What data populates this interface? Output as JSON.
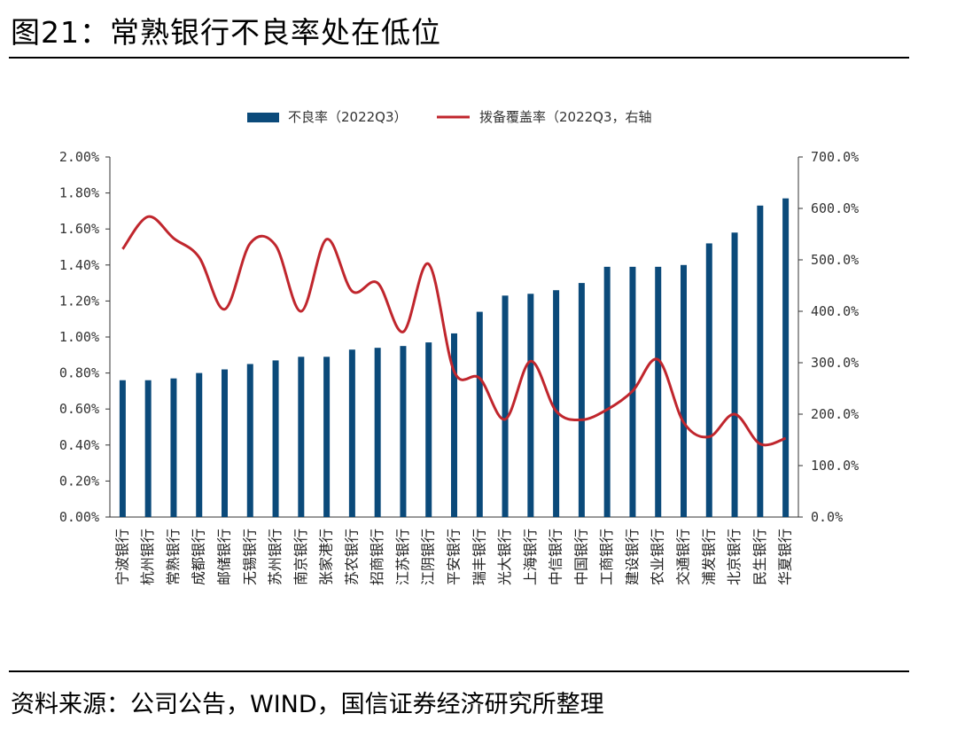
{
  "figure": {
    "title": "图21：常熟银行不良率处在低位",
    "source": "资料来源：公司公告，WIND，国信证券经济研究所整理"
  },
  "chart_data": {
    "type": "bar",
    "categories": [
      "宁波银行",
      "杭州银行",
      "常熟银行",
      "成都银行",
      "邮储银行",
      "无锡银行",
      "苏州银行",
      "南京银行",
      "张家港行",
      "苏农银行",
      "招商银行",
      "江苏银行",
      "江阴银行",
      "平安银行",
      "瑞丰银行",
      "光大银行",
      "上海银行",
      "中信银行",
      "中国银行",
      "工商银行",
      "建设银行",
      "农业银行",
      "交通银行",
      "浦发银行",
      "北京银行",
      "民生银行",
      "华夏银行"
    ],
    "series": [
      {
        "name": "不良率（2022Q3）",
        "type": "bar",
        "axis": "left",
        "color": "#0b4a7a",
        "values": [
          0.76,
          0.76,
          0.77,
          0.8,
          0.82,
          0.85,
          0.87,
          0.89,
          0.89,
          0.93,
          0.94,
          0.95,
          0.97,
          1.02,
          1.14,
          1.23,
          1.24,
          1.26,
          1.3,
          1.39,
          1.39,
          1.39,
          1.4,
          1.52,
          1.58,
          1.73,
          1.77
        ]
      },
      {
        "name": "拨备覆盖率（2022Q3，右轴",
        "type": "line",
        "axis": "right",
        "color": "#c0262d",
        "values": [
          521,
          584,
          542,
          505,
          404,
          532,
          528,
          400,
          540,
          439,
          455,
          360,
          492,
          283,
          270,
          190,
          303,
          206,
          189,
          209,
          245,
          306,
          184,
          156,
          200,
          142,
          153
        ]
      }
    ],
    "y_left": {
      "min": 0,
      "max": 2.0,
      "step": 0.2,
      "tick_labels": [
        "0.00%",
        "0.20%",
        "0.40%",
        "0.60%",
        "0.80%",
        "1.00%",
        "1.20%",
        "1.40%",
        "1.60%",
        "1.80%",
        "2.00%"
      ]
    },
    "y_right": {
      "min": 0,
      "max": 700,
      "step": 100,
      "tick_labels": [
        "0.0%",
        "100.0%",
        "200.0%",
        "300.0%",
        "400.0%",
        "500.0%",
        "600.0%",
        "700.0%"
      ]
    },
    "legend_position": "top-center",
    "grid": false
  }
}
